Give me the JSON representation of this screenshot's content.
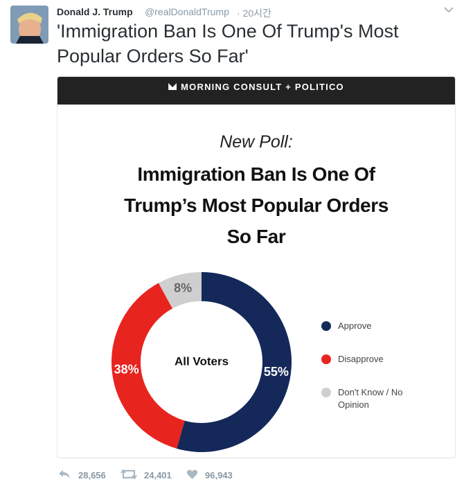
{
  "tweet": {
    "author": "Donald J. Trump",
    "handle": "@realDonaldTrump",
    "time": "· 20시간",
    "text": "'Immigration Ban Is One Of Trump's Most Popular Orders So Far'",
    "replies": "28,656",
    "retweets": "24,401",
    "likes": "96,943"
  },
  "card": {
    "header": "MORNING CONSULT + POLITICO"
  },
  "chart_data": {
    "type": "donut",
    "subtitle": "New Poll:",
    "title": "Immigration Ban Is One Of Trump’s Most Popular Orders So Far",
    "center_label": "All Voters",
    "categories": [
      "Approve",
      "Disapprove",
      "Don't Know / No Opinion"
    ],
    "values": [
      55,
      38,
      8
    ],
    "value_labels": [
      "55%",
      "38%",
      "8%"
    ],
    "colors": [
      "#14295a",
      "#e8241f",
      "#cfcfcf"
    ]
  }
}
